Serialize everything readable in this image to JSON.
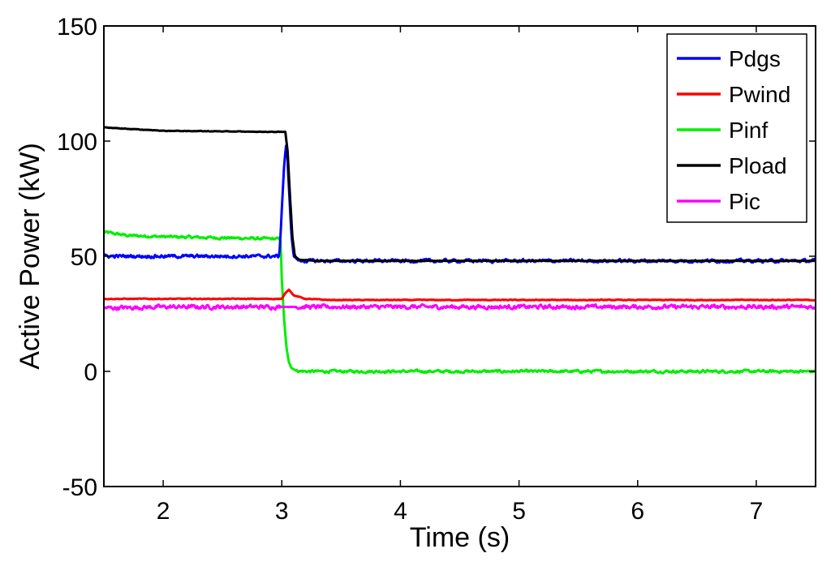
{
  "chart_data": {
    "type": "line",
    "title": "",
    "xlabel": "Time (s)",
    "ylabel": "Active Power (kW)",
    "xlim": [
      1.5,
      7.5
    ],
    "ylim": [
      -50,
      150
    ],
    "xticks": [
      2,
      3,
      4,
      5,
      6,
      7
    ],
    "yticks": [
      -50,
      0,
      50,
      100,
      150
    ],
    "x_tick_labels": [
      "2",
      "3",
      "4",
      "5",
      "6",
      "7"
    ],
    "y_tick_labels": [
      "-50",
      "0",
      "50",
      "100",
      "150"
    ],
    "grid": false,
    "legend_position": "top-right",
    "series": [
      {
        "name": "Pdgs",
        "color": "#0000ff",
        "x": [
          1.5,
          2.0,
          2.5,
          2.9,
          2.98,
          3.0,
          3.02,
          3.04,
          3.06,
          3.08,
          3.1,
          3.15,
          3.3,
          3.6,
          4.0,
          4.5,
          5.0,
          5.5,
          6.0,
          6.5,
          7.0,
          7.5
        ],
        "y": [
          50,
          50,
          50,
          50,
          50,
          70,
          90,
          100,
          80,
          60,
          50,
          48,
          48,
          48,
          48,
          48,
          48,
          48,
          48,
          48,
          48,
          48
        ],
        "noise": 1.2
      },
      {
        "name": "Pwind",
        "color": "#ff0000",
        "x": [
          1.5,
          2.0,
          2.5,
          3.0,
          3.03,
          3.06,
          3.1,
          3.2,
          3.4,
          4.0,
          5.0,
          6.0,
          7.0,
          7.5
        ],
        "y": [
          31.5,
          31.5,
          31.5,
          31.5,
          34,
          35.5,
          33,
          31.5,
          31,
          31,
          31,
          31,
          31,
          31
        ],
        "noise": 0.3
      },
      {
        "name": "Pinf",
        "color": "#00ee00",
        "x": [
          1.5,
          1.7,
          2.0,
          2.5,
          2.99,
          3.0,
          3.02,
          3.04,
          3.06,
          3.08,
          3.12,
          3.2,
          4.0,
          5.0,
          6.0,
          7.0,
          7.5
        ],
        "y": [
          60.5,
          59,
          58.5,
          58,
          57.5,
          40,
          22,
          10,
          4,
          1.5,
          0.3,
          0,
          0,
          0,
          0,
          0,
          0
        ],
        "noise": 1.0
      },
      {
        "name": "Pload",
        "color": "#000000",
        "x": [
          1.5,
          1.8,
          2.0,
          2.9,
          3.03,
          3.05,
          3.07,
          3.09,
          3.11,
          3.15,
          3.3,
          4.0,
          5.0,
          6.0,
          7.0,
          7.5
        ],
        "y": [
          106,
          105,
          104.5,
          104,
          104,
          95,
          75,
          58,
          50,
          48.5,
          48,
          48,
          48,
          48,
          48,
          48
        ],
        "noise": 0.2
      },
      {
        "name": "Pic",
        "color": "#ff00ff",
        "x": [
          1.5,
          2.0,
          2.5,
          3.0,
          3.5,
          4.0,
          4.5,
          5.0,
          5.5,
          6.0,
          6.5,
          7.0,
          7.5
        ],
        "y": [
          27.5,
          28,
          28,
          28,
          28,
          28,
          28,
          28,
          28,
          28,
          28,
          28,
          28
        ],
        "noise": 1.5
      }
    ]
  }
}
